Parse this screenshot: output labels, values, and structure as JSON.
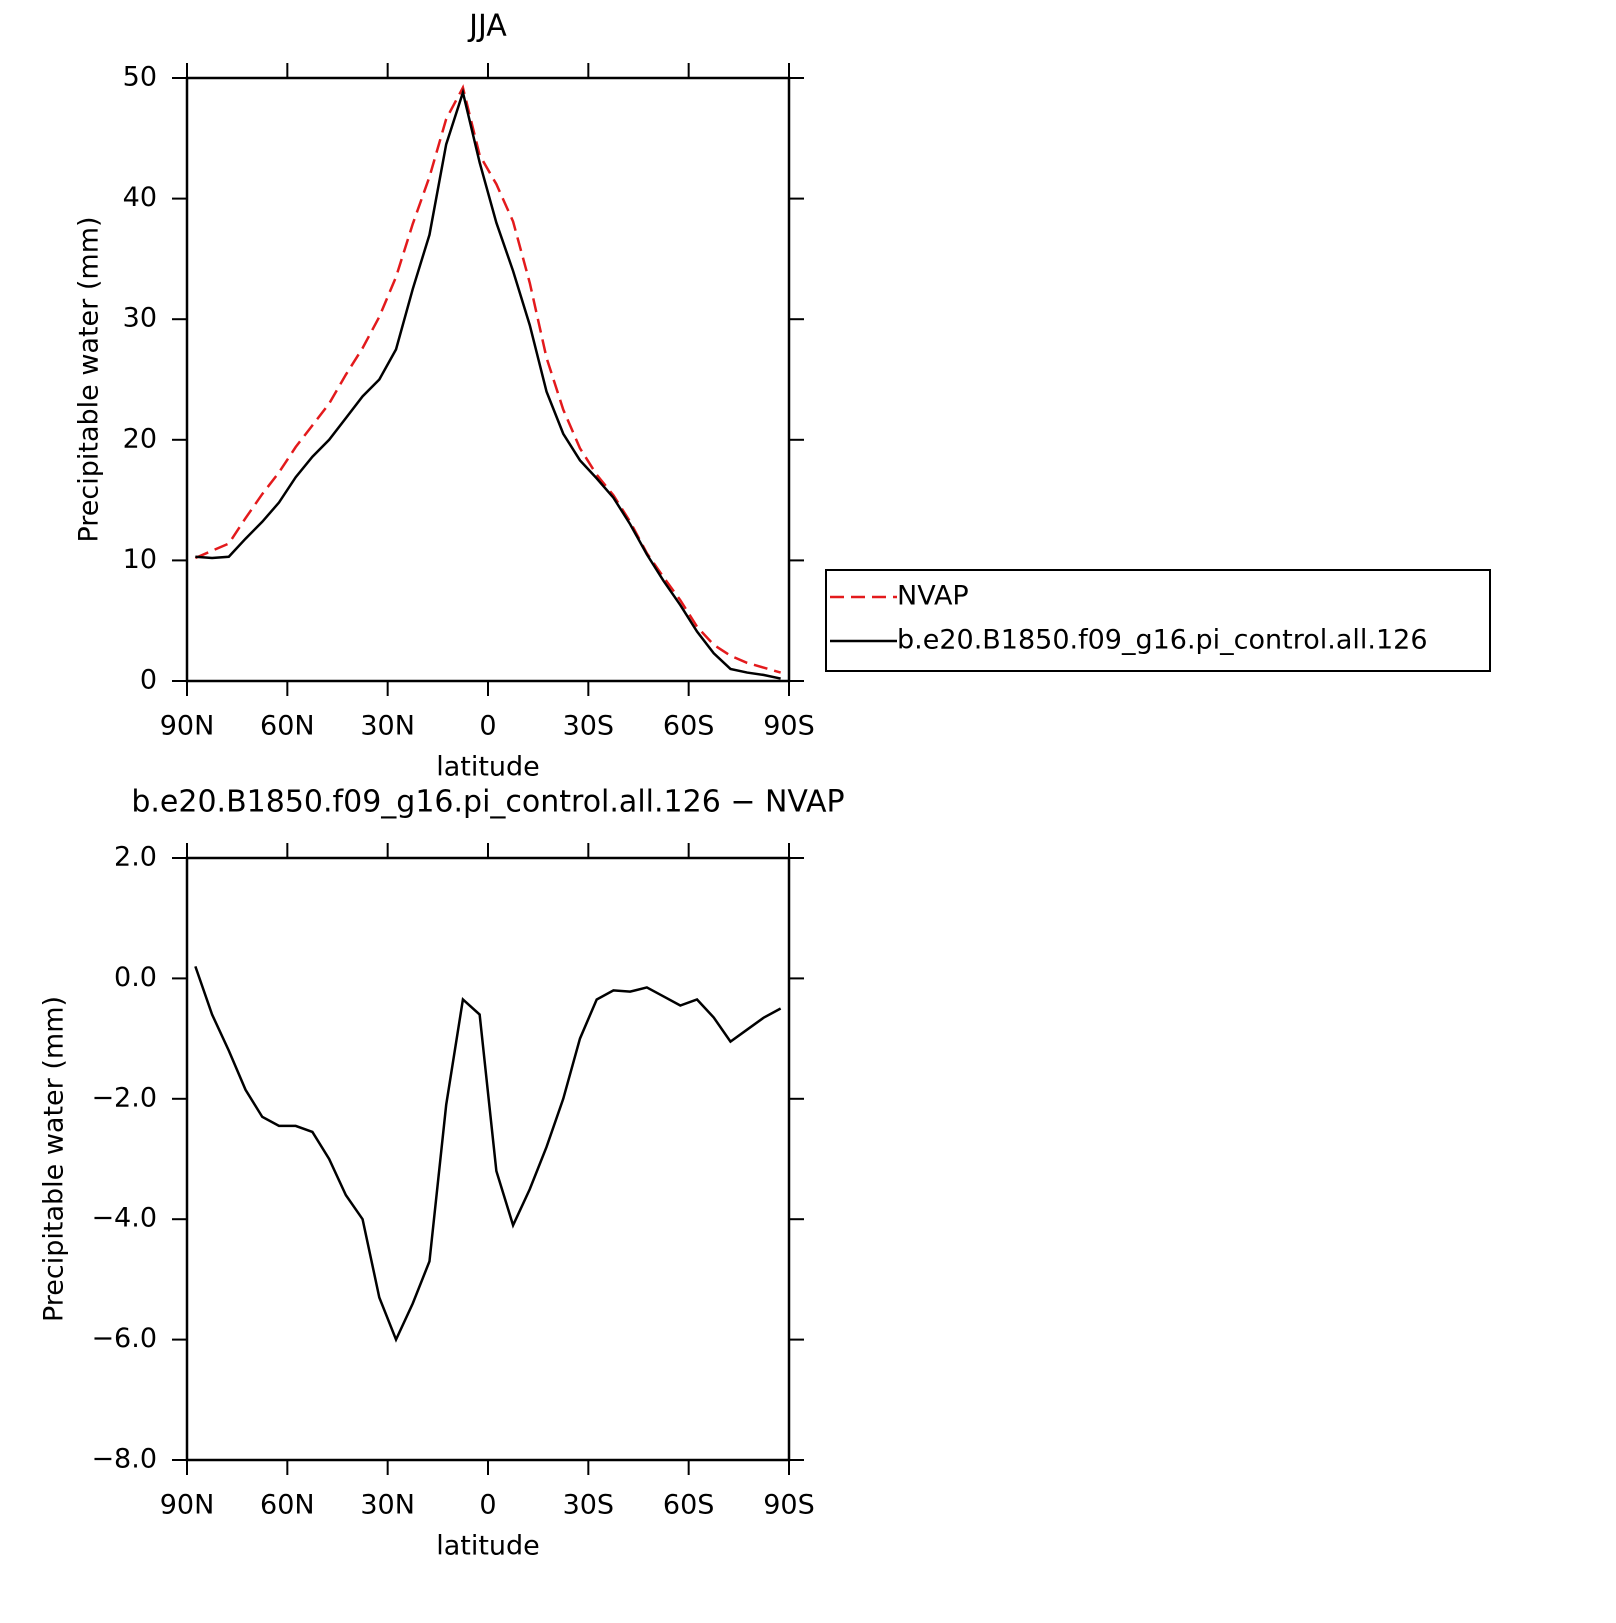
{
  "chart_data": [
    {
      "type": "line",
      "title": "JJA",
      "xlabel": "latitude",
      "ylabel": "Precipitable water (mm)",
      "x": [
        87.5,
        82.5,
        77.5,
        72.5,
        67.5,
        62.5,
        57.5,
        52.5,
        47.5,
        42.5,
        37.5,
        32.5,
        27.5,
        22.5,
        17.5,
        12.5,
        7.5,
        2.5,
        -2.5,
        -7.5,
        -12.5,
        -17.5,
        -22.5,
        -27.5,
        -32.5,
        -37.5,
        -42.5,
        -47.5,
        -52.5,
        -57.5,
        -62.5,
        -67.5,
        -72.5,
        -77.5,
        -82.5,
        -87.5
      ],
      "series": [
        {
          "name": "NVAP",
          "color": "#e31a1c",
          "dash": "dashed",
          "values": [
            10.2,
            10.8,
            11.4,
            13.5,
            15.5,
            17.3,
            19.4,
            21.2,
            23.0,
            25.4,
            27.6,
            30.2,
            33.5,
            37.9,
            41.8,
            46.6,
            49.2,
            43.6,
            41.2,
            38.1,
            33.0,
            26.8,
            22.5,
            19.3,
            17.1,
            15.4,
            13.2,
            10.6,
            8.6,
            6.7,
            4.5,
            3.0,
            2.1,
            1.5,
            1.1,
            0.7
          ]
        },
        {
          "name": "b.e20.B1850.f09_g16.pi_control.all.126",
          "color": "#000000",
          "dash": "solid",
          "values": [
            10.3,
            10.2,
            10.3,
            11.8,
            13.2,
            14.8,
            16.9,
            18.6,
            20.0,
            21.8,
            23.6,
            25.0,
            27.5,
            32.5,
            37.0,
            44.5,
            48.8,
            43.0,
            38.0,
            34.0,
            29.5,
            24.0,
            20.5,
            18.3,
            16.8,
            15.2,
            13.0,
            10.5,
            8.3,
            6.3,
            4.1,
            2.3,
            1.0,
            0.7,
            0.5,
            0.2
          ]
        }
      ],
      "xlim": [
        90,
        -90
      ],
      "xticks": [
        {
          "value": 90,
          "label": "90N"
        },
        {
          "value": 60,
          "label": "60N"
        },
        {
          "value": 30,
          "label": "30N"
        },
        0,
        {
          "value": -30,
          "label": "30S"
        },
        {
          "value": -60,
          "label": "60S"
        },
        {
          "value": -90,
          "label": "90S"
        }
      ],
      "ylim": [
        0,
        50
      ],
      "yticks": [
        0,
        10,
        20,
        30,
        40,
        50
      ],
      "legend": "right"
    },
    {
      "type": "line",
      "title": "b.e20.B1850.f09_g16.pi_control.all.126 − NVAP",
      "xlabel": "latitude",
      "ylabel": "Precipitable water (mm)",
      "x": [
        87.5,
        82.5,
        77.5,
        72.5,
        67.5,
        62.5,
        57.5,
        52.5,
        47.5,
        42.5,
        37.5,
        32.5,
        27.5,
        22.5,
        17.5,
        12.5,
        7.5,
        2.5,
        -2.5,
        -7.5,
        -12.5,
        -17.5,
        -22.5,
        -27.5,
        -32.5,
        -37.5,
        -42.5,
        -47.5,
        -52.5,
        -57.5,
        -62.5,
        -67.5,
        -72.5,
        -77.5,
        -82.5,
        -87.5
      ],
      "series": [
        {
          "color": "#000000",
          "dash": "solid",
          "values": [
            0.2,
            -0.6,
            -1.2,
            -1.85,
            -2.3,
            -2.45,
            -2.45,
            -2.55,
            -3.0,
            -3.6,
            -4.0,
            -5.3,
            -6.0,
            -5.4,
            -4.7,
            -2.1,
            -0.35,
            -0.6,
            -3.2,
            -4.1,
            -3.5,
            -2.8,
            -2.0,
            -1.0,
            -0.35,
            -0.2,
            -0.22,
            -0.15,
            -0.3,
            -0.45,
            -0.35,
            -0.65,
            -1.05,
            -0.85,
            -0.65,
            -0.5
          ]
        }
      ],
      "xlim": [
        90,
        -90
      ],
      "xticks": [
        {
          "value": 90,
          "label": "90N"
        },
        {
          "value": 60,
          "label": "60N"
        },
        {
          "value": 30,
          "label": "30N"
        },
        0,
        {
          "value": -30,
          "label": "30S"
        },
        {
          "value": -60,
          "label": "60S"
        },
        {
          "value": -90,
          "label": "90S"
        }
      ],
      "ylim": [
        -8,
        2
      ],
      "yticks": [
        {
          "value": -8,
          "label": "−8.0"
        },
        {
          "value": -6,
          "label": "−6.0"
        },
        {
          "value": -4,
          "label": "−4.0"
        },
        {
          "value": -2,
          "label": "−2.0"
        },
        {
          "value": 0,
          "label": "0.0"
        },
        {
          "value": 2,
          "label": "2.0"
        }
      ]
    }
  ]
}
